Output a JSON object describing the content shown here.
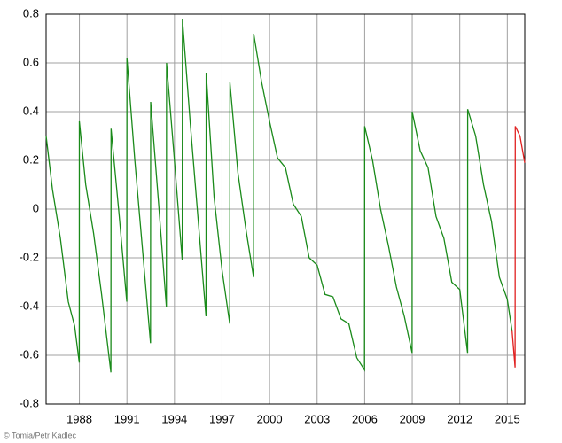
{
  "chart_data": {
    "type": "line",
    "series": [
      {
        "color": "#1a8a1a",
        "x": [
          1985.9,
          1986.3,
          1986.8,
          1987.3,
          1987.7,
          1987.99,
          1988.0,
          1988.4,
          1988.9,
          1989.4,
          1989.99,
          1990.0,
          1990.5,
          1990.99,
          1991.0,
          1991.5,
          1992.0,
          1992.49,
          1992.5,
          1993.0,
          1993.49,
          1993.5,
          1994.0,
          1994.49,
          1994.5,
          1995.0,
          1995.5,
          1995.99,
          1996.0,
          1996.5,
          1997.0,
          1997.49,
          1997.5,
          1998.0,
          1998.5,
          1998.99,
          1999.0,
          1999.5,
          2000.0,
          2000.5,
          2001.0,
          2001.5,
          2002.0,
          2002.5,
          2003.0,
          2003.5,
          2004.0,
          2004.5,
          2005.0,
          2005.5,
          2005.99,
          2006.0,
          2006.5,
          2007.0,
          2007.5,
          2008.0,
          2008.5,
          2008.99,
          2009.0,
          2009.5,
          2010.0,
          2010.5,
          2011.0,
          2011.5,
          2012.0,
          2012.49,
          2012.5,
          2013.0,
          2013.5,
          2014.0,
          2014.5,
          2015.0,
          2015.3
        ],
        "values": [
          0.3,
          0.08,
          -0.12,
          -0.38,
          -0.48,
          -0.63,
          0.36,
          0.1,
          -0.1,
          -0.35,
          -0.67,
          0.33,
          -0.02,
          -0.38,
          0.62,
          0.2,
          -0.18,
          -0.55,
          0.44,
          0.02,
          -0.4,
          0.6,
          0.2,
          -0.21,
          0.78,
          0.35,
          -0.05,
          -0.44,
          0.56,
          0.05,
          -0.25,
          -0.47,
          0.52,
          0.15,
          -0.08,
          -0.28,
          0.72,
          0.52,
          0.36,
          0.21,
          0.17,
          0.02,
          -0.03,
          -0.2,
          -0.23,
          -0.35,
          -0.36,
          -0.45,
          -0.47,
          -0.61,
          -0.66,
          0.34,
          0.2,
          0.0,
          -0.15,
          -0.32,
          -0.44,
          -0.59,
          0.4,
          0.24,
          0.17,
          -0.03,
          -0.12,
          -0.3,
          -0.33,
          -0.59,
          0.41,
          0.3,
          0.1,
          -0.05,
          -0.28,
          -0.37,
          -0.5
        ]
      },
      {
        "color": "#e02020",
        "x": [
          2015.3,
          2015.49,
          2015.5,
          2015.8,
          2016.1
        ],
        "values": [
          -0.5,
          -0.65,
          0.34,
          0.3,
          0.19
        ]
      }
    ],
    "xlim": [
      1985.9,
      2016.1
    ],
    "xticks": [
      1988,
      1991,
      1994,
      1997,
      2000,
      2003,
      2006,
      2009,
      2012,
      2015
    ],
    "ylim": [
      -0.8,
      0.8
    ],
    "yticks": [
      -0.8,
      -0.6,
      -0.4,
      -0.2,
      0,
      0.2,
      0.4,
      0.6,
      0.8
    ],
    "grid": true,
    "credit": "© Tomia/Petr Kadlec"
  }
}
